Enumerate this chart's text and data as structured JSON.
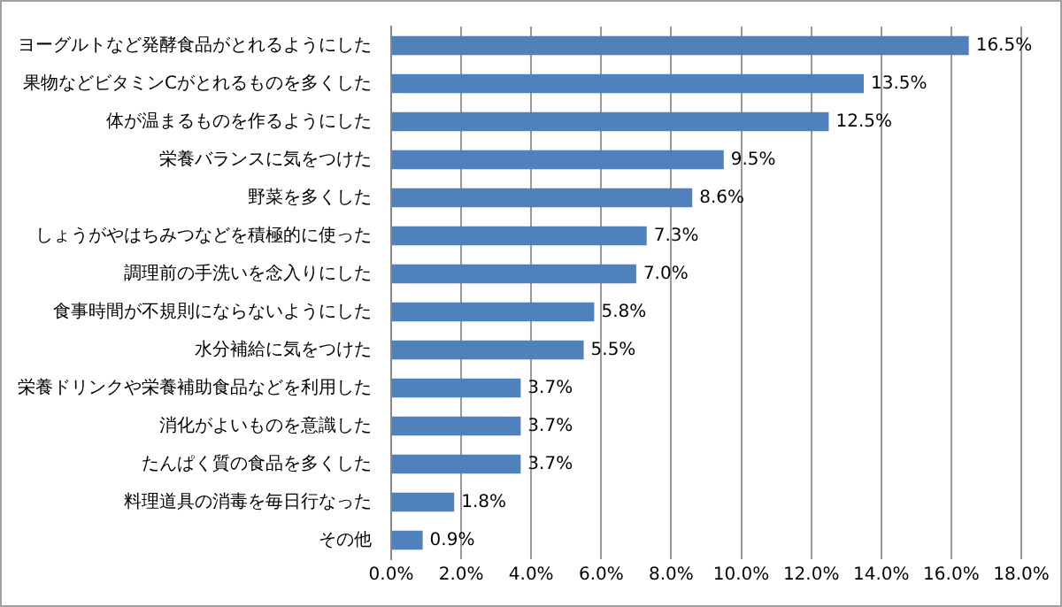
{
  "chart_data": {
    "type": "bar",
    "orientation": "horizontal",
    "categories": [
      "ヨーグルトなど発酵食品がとれるようにした",
      "果物などビタミンCがとれるものを多くした",
      "体が温まるものを作るようにした",
      "栄養バランスに気をつけた",
      "野菜を多くした",
      "しょうがやはちみつなどを積極的に使った",
      "調理前の手洗いを念入りにした",
      "食事時間が不規則にならないようにした",
      "水分補給に気をつけた",
      "栄養ドリンクや栄養補助食品などを利用した",
      "消化がよいものを意識した",
      "たんぱく質の食品を多くした",
      "料理道具の消毒を毎日行なった",
      "その他"
    ],
    "values": [
      16.5,
      13.5,
      12.5,
      9.5,
      8.6,
      7.3,
      7.0,
      5.8,
      5.5,
      3.7,
      3.7,
      3.7,
      1.8,
      0.9
    ],
    "value_labels": [
      "16.5%",
      "13.5%",
      "12.5%",
      "9.5%",
      "8.6%",
      "7.3%",
      "7.0%",
      "5.8%",
      "5.5%",
      "3.7%",
      "3.7%",
      "3.7%",
      "1.8%",
      "0.9%"
    ],
    "color": "#4f81bd",
    "xlim": [
      0,
      18
    ],
    "xticks": [
      {
        "value": 0,
        "label": "0.0%"
      },
      {
        "value": 2,
        "label": "2.0%"
      },
      {
        "value": 4,
        "label": "4.0%"
      },
      {
        "value": 6,
        "label": "6.0%"
      },
      {
        "value": 8,
        "label": "8.0%"
      },
      {
        "value": 10,
        "label": "10.0%"
      },
      {
        "value": 12,
        "label": "12.0%"
      },
      {
        "value": 14,
        "label": "14.0%"
      },
      {
        "value": 16,
        "label": "16.0%"
      },
      {
        "value": 18,
        "label": "18.0%"
      }
    ],
    "grid": "x",
    "legend": false
  }
}
